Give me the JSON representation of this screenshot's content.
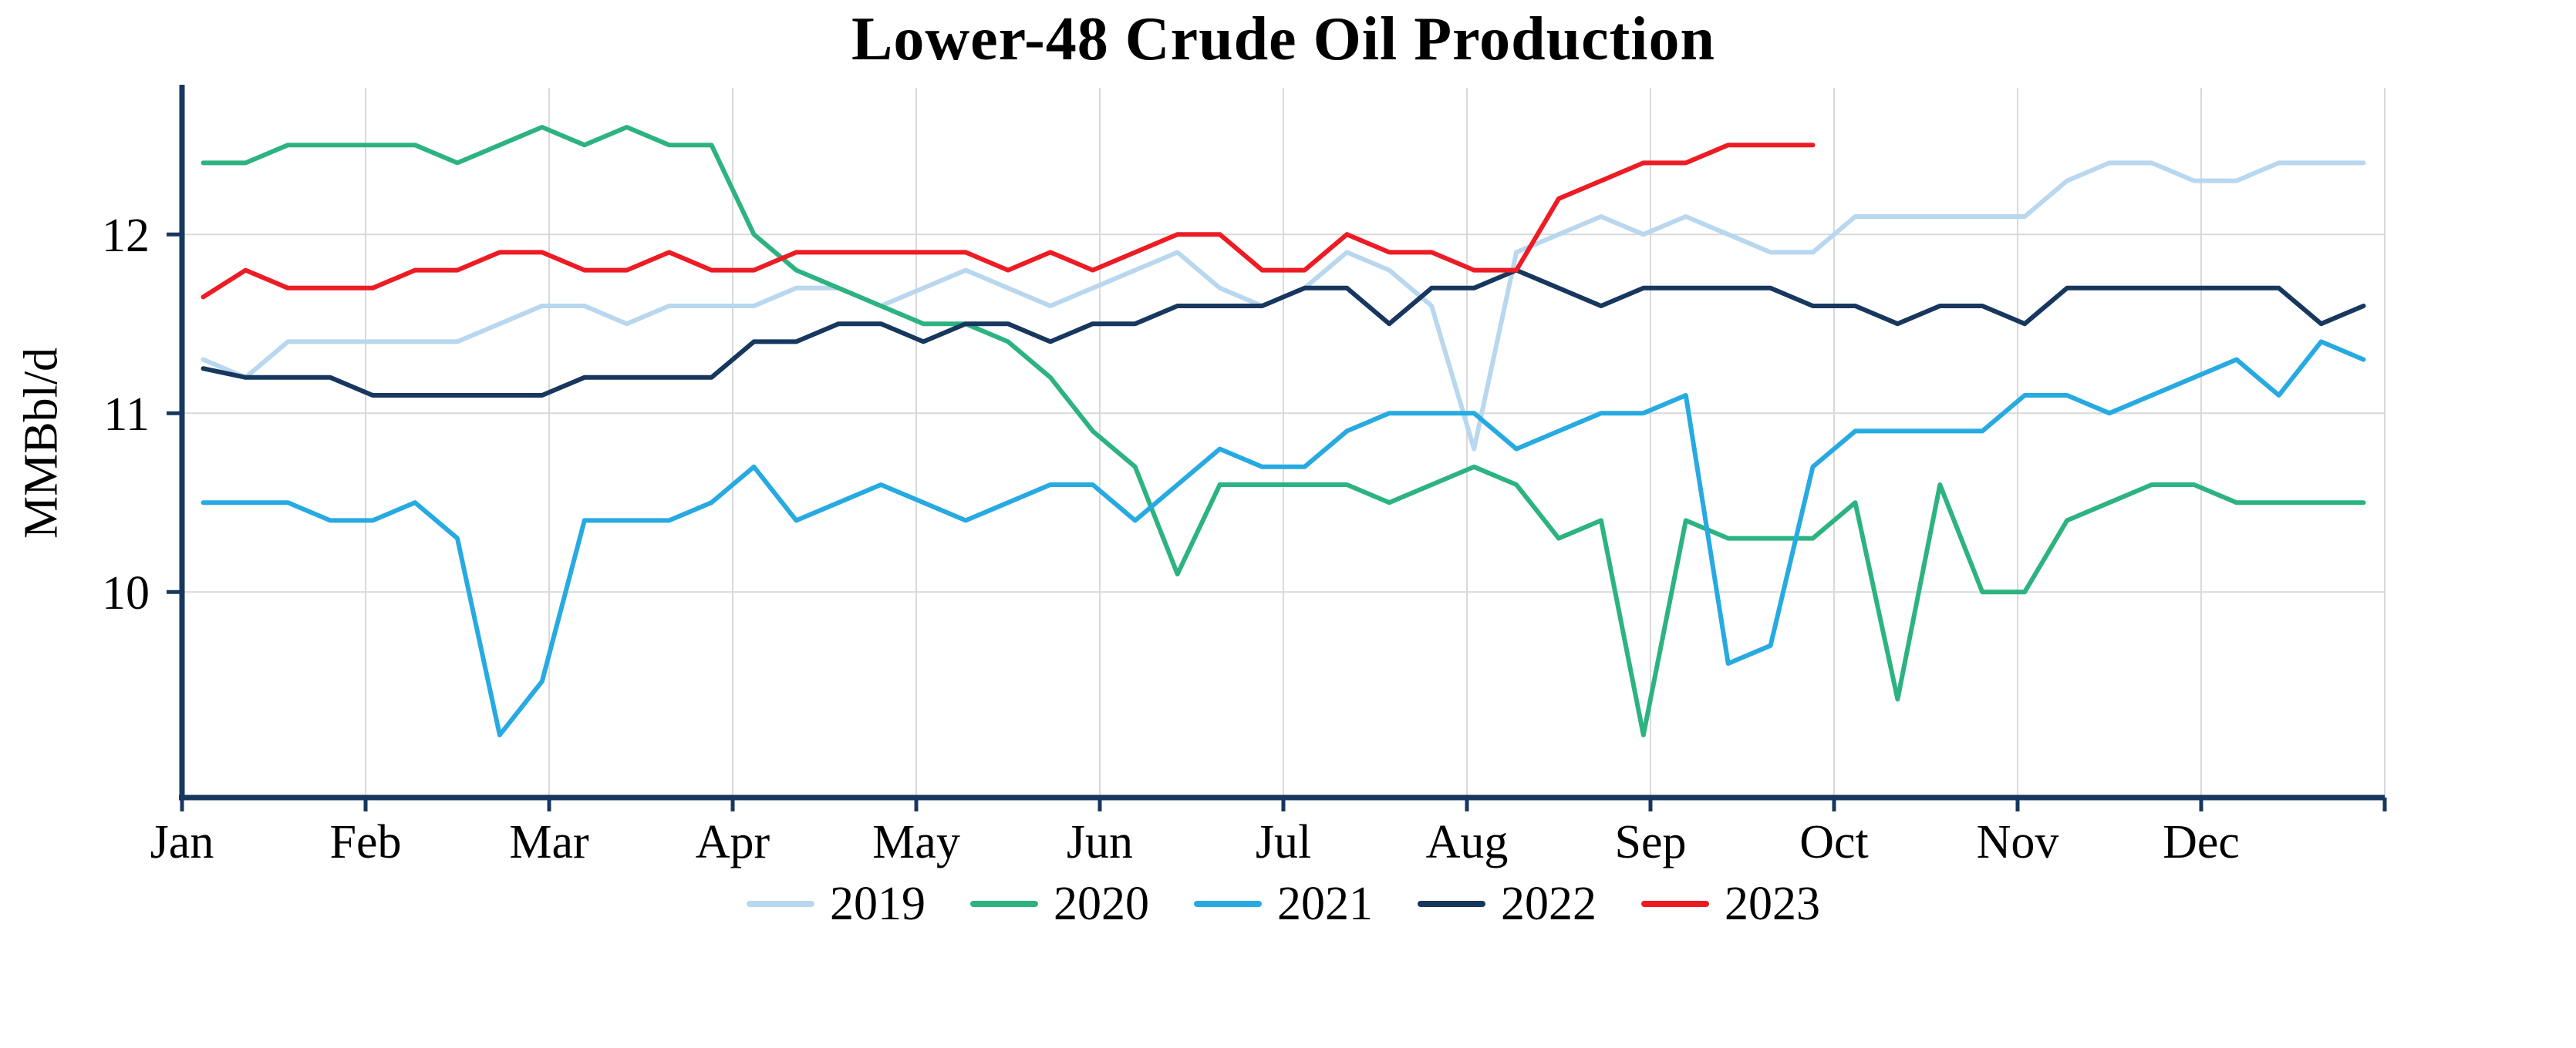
{
  "page": {
    "background": "#ffffff"
  },
  "chart_data": {
    "type": "line",
    "title": "Lower-48 Crude Oil Production",
    "ylabel": "MMBbl/d",
    "xlabel": "",
    "x_tick_labels": [
      "Jan",
      "Feb",
      "Mar",
      "Apr",
      "May",
      "Jun",
      "Jul",
      "Aug",
      "Sep",
      "Oct",
      "Nov",
      "Dec"
    ],
    "y_ticks": [
      10,
      11,
      12
    ],
    "y_tick_labels": [
      "10",
      "11",
      "12"
    ],
    "ylim": [
      8.85,
      12.82
    ],
    "x_months": [
      0,
      12
    ],
    "cadence": "weekly",
    "grid": true,
    "legend_position": "bottom",
    "colors": {
      "axis": "#17375e",
      "grid": "#d9d9d9",
      "background": "#ffffff",
      "title": "#000000"
    },
    "series": [
      {
        "name": "2019",
        "color": "#b9d7ee",
        "values": [
          11.3,
          11.2,
          11.4,
          11.4,
          11.4,
          11.4,
          11.4,
          11.5,
          11.6,
          11.6,
          11.5,
          11.6,
          11.6,
          11.6,
          11.7,
          11.7,
          11.6,
          11.7,
          11.8,
          11.7,
          11.6,
          11.7,
          11.8,
          11.9,
          11.7,
          11.6,
          11.7,
          11.9,
          11.8,
          11.6,
          10.8,
          11.9,
          12.0,
          12.1,
          12.0,
          12.1,
          12.0,
          11.9,
          11.9,
          12.1,
          12.1,
          12.1,
          12.1,
          12.1,
          12.3,
          12.4,
          12.4,
          12.3,
          12.3,
          12.4,
          12.4,
          12.4
        ]
      },
      {
        "name": "2020",
        "color": "#2db381",
        "values": [
          12.4,
          12.4,
          12.5,
          12.5,
          12.5,
          12.5,
          12.4,
          12.5,
          12.6,
          12.5,
          12.6,
          12.5,
          12.5,
          12.0,
          11.8,
          11.7,
          11.6,
          11.5,
          11.5,
          11.4,
          11.2,
          10.9,
          10.7,
          10.1,
          10.6,
          10.6,
          10.6,
          10.6,
          10.5,
          10.6,
          10.7,
          10.6,
          10.3,
          10.4,
          9.2,
          10.4,
          10.3,
          10.3,
          10.3,
          10.5,
          9.4,
          10.6,
          10.0,
          10.0,
          10.4,
          10.5,
          10.6,
          10.6,
          10.5,
          10.5,
          10.5,
          10.5
        ]
      },
      {
        "name": "2021",
        "color": "#27aae1",
        "values": [
          10.5,
          10.5,
          10.5,
          10.4,
          10.4,
          10.5,
          10.3,
          9.2,
          9.5,
          10.4,
          10.4,
          10.4,
          10.5,
          10.7,
          10.4,
          10.5,
          10.6,
          10.5,
          10.4,
          10.5,
          10.6,
          10.6,
          10.4,
          10.6,
          10.8,
          10.7,
          10.7,
          10.9,
          11.0,
          11.0,
          11.0,
          10.8,
          10.9,
          11.0,
          11.0,
          11.1,
          9.6,
          9.7,
          10.7,
          10.9,
          10.9,
          10.9,
          10.9,
          11.1,
          11.1,
          11.0,
          11.1,
          11.2,
          11.3,
          11.1,
          11.4,
          11.3
        ]
      },
      {
        "name": "2022",
        "color": "#17375e",
        "values": [
          11.25,
          11.2,
          11.2,
          11.2,
          11.1,
          11.1,
          11.1,
          11.1,
          11.1,
          11.2,
          11.2,
          11.2,
          11.2,
          11.4,
          11.4,
          11.5,
          11.5,
          11.4,
          11.5,
          11.5,
          11.4,
          11.5,
          11.5,
          11.6,
          11.6,
          11.6,
          11.7,
          11.7,
          11.5,
          11.7,
          11.7,
          11.8,
          11.7,
          11.6,
          11.7,
          11.7,
          11.7,
          11.7,
          11.6,
          11.6,
          11.5,
          11.6,
          11.6,
          11.5,
          11.7,
          11.7,
          11.7,
          11.7,
          11.7,
          11.7,
          11.5,
          11.6
        ]
      },
      {
        "name": "2023",
        "color": "#ed1c24",
        "values": [
          11.65,
          11.8,
          11.7,
          11.7,
          11.7,
          11.8,
          11.8,
          11.9,
          11.9,
          11.8,
          11.8,
          11.9,
          11.8,
          11.8,
          11.9,
          11.9,
          11.9,
          11.9,
          11.9,
          11.8,
          11.9,
          11.8,
          11.9,
          12.0,
          12.0,
          11.8,
          11.8,
          12.0,
          11.9,
          11.9,
          11.8,
          11.8,
          12.2,
          12.3,
          12.4,
          12.4,
          12.5,
          12.5,
          12.5
        ]
      }
    ]
  }
}
